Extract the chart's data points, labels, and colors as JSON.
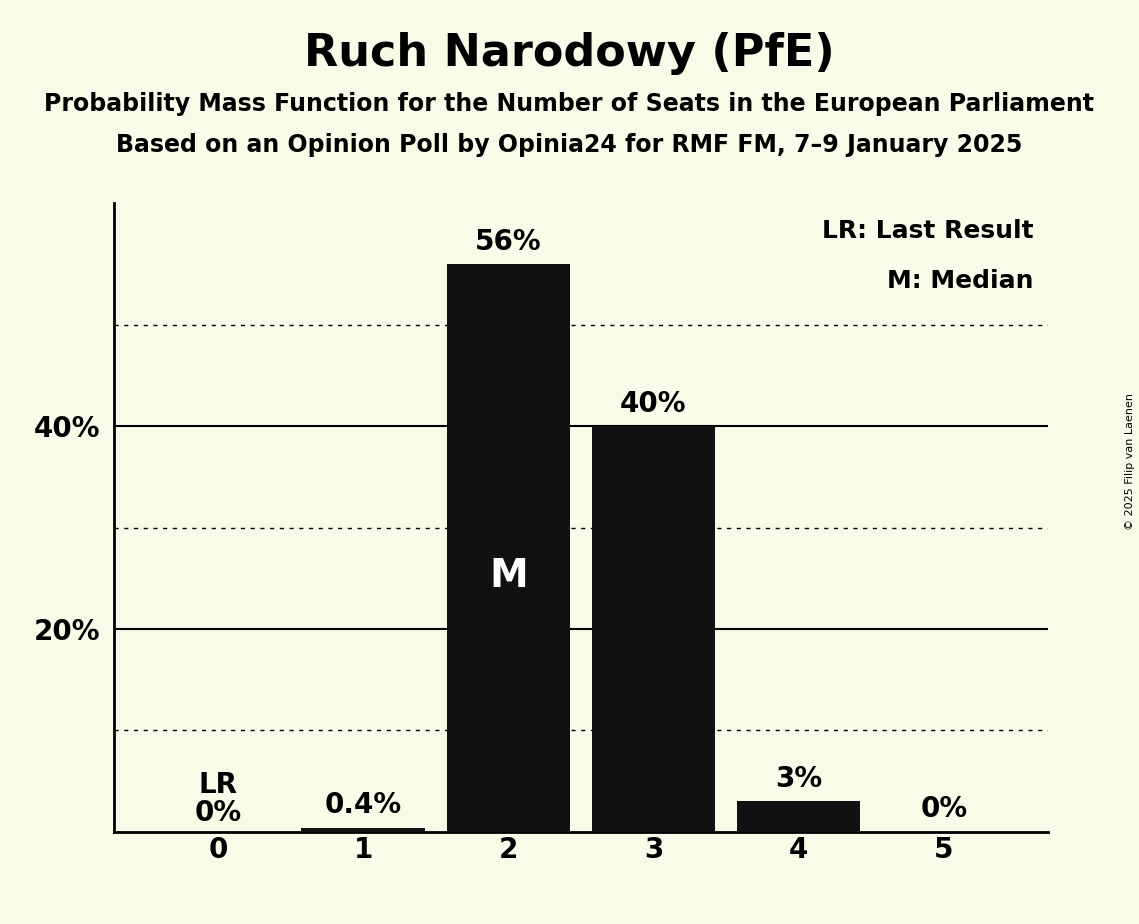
{
  "title": "Ruch Narodowy (PfE)",
  "subtitle1": "Probability Mass Function for the Number of Seats in the European Parliament",
  "subtitle2": "Based on an Opinion Poll by Opinia24 for RMF FM, 7–9 January 2025",
  "copyright": "© 2025 Filip van Laenen",
  "categories": [
    0,
    1,
    2,
    3,
    4,
    5
  ],
  "values": [
    0.0,
    0.004,
    0.56,
    0.4,
    0.03,
    0.0
  ],
  "bar_labels": [
    "0%",
    "0.4%",
    "56%",
    "40%",
    "3%",
    "0%"
  ],
  "bar_color": "#111111",
  "background_color": "#fafae8",
  "median_bar": 2,
  "lr_bar": 0,
  "legend_lr": "LR: Last Result",
  "legend_m": "M: Median",
  "ylim": [
    0,
    0.62
  ],
  "solid_yticks": [
    0.2,
    0.4
  ],
  "dotted_yticks": [
    0.1,
    0.3,
    0.5
  ],
  "ytick_positions": [
    0.2,
    0.4
  ],
  "ytick_labels": [
    "20%",
    "40%"
  ],
  "title_fontsize": 32,
  "subtitle_fontsize": 17,
  "axis_label_fontsize": 20,
  "bar_label_fontsize": 20,
  "legend_fontsize": 18,
  "median_label_fontsize": 28,
  "copyright_fontsize": 8
}
